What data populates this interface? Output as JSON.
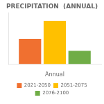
{
  "chart_data": {
    "type": "bar",
    "title": "PRECIPITATION  (ANNUAL)",
    "categories": [
      "Annual"
    ],
    "series": [
      {
        "name": "2021-2050",
        "color": "#F07030",
        "values": [
          42
        ]
      },
      {
        "name": "2051-2075",
        "color": "#FFC000",
        "values": [
          72
        ]
      },
      {
        "name": "2076-2100",
        "color": "#70AD47",
        "values": [
          22
        ]
      }
    ],
    "ylim": [
      0,
      85
    ],
    "yticks": [],
    "grid": false,
    "tick_labels": "x",
    "legend": "bottom"
  }
}
